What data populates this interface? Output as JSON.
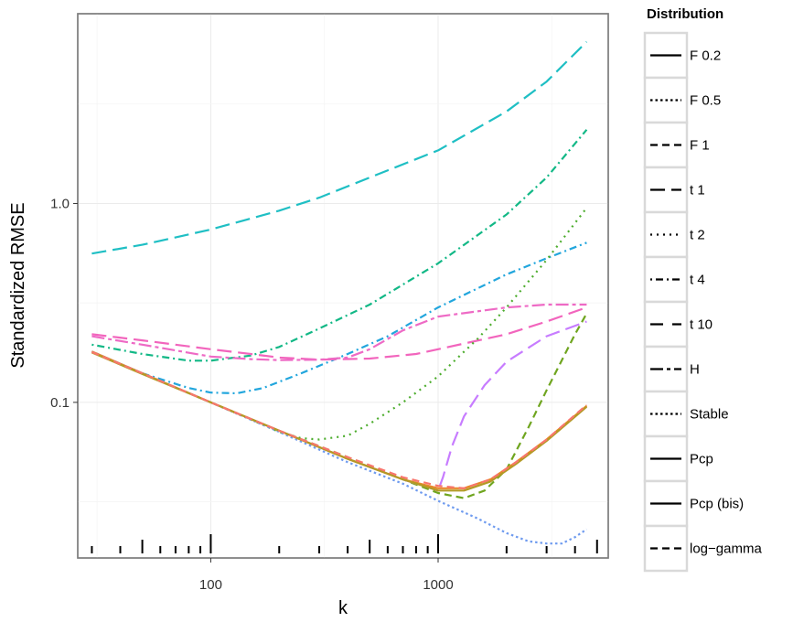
{
  "chart_data": {
    "type": "line",
    "xlabel": "k",
    "ylabel": "Standardized RMSE",
    "x_scale": "log10",
    "y_scale": "log10",
    "xlim": [
      26,
      5600
    ],
    "ylim": [
      0.0165,
      9.0
    ],
    "x_ticks": [
      100,
      1000
    ],
    "x_tick_labels": [
      "100",
      "1000"
    ],
    "y_ticks": [
      0.1,
      1.0
    ],
    "y_tick_labels": [
      "0.1",
      "1.0"
    ],
    "grid": true,
    "rug": true,
    "legend_position": "right",
    "legend_title": "Distribution",
    "legend_entries": [
      {
        "label": "F 0.2",
        "dash": "solid"
      },
      {
        "label": "F 0.5",
        "dash": "dotted-short"
      },
      {
        "label": "F 1",
        "dash": "dashed"
      },
      {
        "label": "t 1",
        "dash": "longdash"
      },
      {
        "label": "t 2",
        "dash": "dotted"
      },
      {
        "label": "t 4",
        "dash": "dotdash"
      },
      {
        "label": "t 10",
        "dash": "longdash-wide"
      },
      {
        "label": "H",
        "dash": "twodash"
      },
      {
        "label": "Stable",
        "dash": "dotted-short"
      },
      {
        "label": "Pcp",
        "dash": "solid"
      },
      {
        "label": "Pcp (bis)",
        "dash": "solid"
      },
      {
        "label": "log−gamma",
        "dash": "dashed"
      }
    ],
    "series": [
      {
        "color": "#1FBFC4",
        "dash": "longdash",
        "x": [
          30,
          50,
          100,
          200,
          300,
          500,
          1000,
          2000,
          3000,
          4500
        ],
        "y": [
          0.56,
          0.62,
          0.74,
          0.92,
          1.07,
          1.35,
          1.85,
          2.9,
          4.1,
          6.5
        ]
      },
      {
        "color": "#12B886",
        "dash": "dotdash",
        "x": [
          30,
          50,
          80,
          100,
          150,
          200,
          300,
          500,
          1000,
          2000,
          3000,
          4500
        ],
        "y": [
          0.195,
          0.175,
          0.162,
          0.162,
          0.172,
          0.19,
          0.235,
          0.31,
          0.5,
          0.88,
          1.35,
          2.35
        ]
      },
      {
        "color": "#22A6DD",
        "dash": "dotdash",
        "x": [
          30,
          50,
          80,
          100,
          130,
          170,
          250,
          400,
          600,
          1000,
          2000,
          3000,
          4500
        ],
        "y": [
          0.18,
          0.14,
          0.118,
          0.112,
          0.111,
          0.118,
          0.14,
          0.175,
          0.215,
          0.3,
          0.44,
          0.53,
          0.635
        ]
      },
      {
        "color": "#F265BD",
        "dash": "longdash",
        "x": [
          30,
          50,
          100,
          150,
          200,
          300,
          500,
          800,
          1000,
          2000,
          3000,
          4500
        ],
        "y": [
          0.22,
          0.205,
          0.185,
          0.175,
          0.168,
          0.164,
          0.166,
          0.175,
          0.185,
          0.22,
          0.255,
          0.3
        ]
      },
      {
        "color": "#EE6AC5",
        "dash": "twodash",
        "x": [
          30,
          50,
          100,
          150,
          200,
          300,
          400,
          500,
          700,
          1000,
          2000,
          3000,
          4500
        ],
        "y": [
          0.215,
          0.195,
          0.17,
          0.165,
          0.163,
          0.164,
          0.168,
          0.185,
          0.23,
          0.27,
          0.3,
          0.31,
          0.31
        ]
      },
      {
        "color": "#4DAD2E",
        "dash": "dotted",
        "x": [
          30,
          50,
          100,
          150,
          200,
          250,
          300,
          400,
          500,
          700,
          1000,
          1500,
          2000,
          3000,
          4500
        ],
        "y": [
          0.18,
          0.14,
          0.1,
          0.082,
          0.071,
          0.066,
          0.065,
          0.068,
          0.078,
          0.1,
          0.135,
          0.21,
          0.3,
          0.52,
          0.95
        ]
      },
      {
        "color": "#6FA51F",
        "dash": "dashed",
        "x": [
          30,
          50,
          100,
          200,
          400,
          700,
          1000,
          1300,
          1600,
          2000,
          2500,
          3000,
          4000,
          4500
        ],
        "y": [
          0.18,
          0.14,
          0.1,
          0.072,
          0.053,
          0.041,
          0.035,
          0.033,
          0.036,
          0.046,
          0.075,
          0.115,
          0.22,
          0.28
        ]
      },
      {
        "color": "#C77CFF",
        "dash": "longdash",
        "x": [
          30,
          50,
          100,
          200,
          400,
          700,
          1000,
          1050,
          1150,
          1300,
          1600,
          2000,
          3000,
          4500
        ],
        "y": [
          0.18,
          0.14,
          0.1,
          0.072,
          0.052,
          0.041,
          0.036,
          0.042,
          0.06,
          0.085,
          0.122,
          0.16,
          0.215,
          0.255
        ]
      },
      {
        "color": "#6F9BEF",
        "dash": "dotted-short",
        "x": [
          30,
          50,
          100,
          200,
          400,
          700,
          1000,
          1500,
          2000,
          2500,
          3000,
          3500,
          4000,
          4500
        ],
        "y": [
          0.18,
          0.14,
          0.1,
          0.071,
          0.05,
          0.039,
          0.032,
          0.026,
          0.022,
          0.02,
          0.0195,
          0.0195,
          0.021,
          0.023
        ]
      },
      {
        "color": "#E8872A",
        "dash": "solid",
        "x": [
          30,
          50,
          100,
          200,
          400,
          700,
          1000,
          1300,
          1700,
          2200,
          3000,
          4500
        ],
        "y": [
          0.18,
          0.14,
          0.1,
          0.072,
          0.052,
          0.041,
          0.037,
          0.037,
          0.041,
          0.05,
          0.065,
          0.096
        ]
      },
      {
        "color": "#B39A25",
        "dash": "solid",
        "x": [
          30,
          50,
          100,
          200,
          400,
          700,
          1000,
          1300,
          1700,
          2200,
          3000,
          4500
        ],
        "y": [
          0.178,
          0.139,
          0.1,
          0.072,
          0.052,
          0.041,
          0.036,
          0.036,
          0.04,
          0.049,
          0.064,
          0.095
        ]
      },
      {
        "color": "#F8766D",
        "dash": "dashed",
        "x": [
          30,
          50,
          100,
          200,
          400,
          700,
          1000,
          1300,
          1700,
          2200,
          3000,
          4500
        ],
        "y": [
          0.179,
          0.14,
          0.1,
          0.072,
          0.053,
          0.042,
          0.038,
          0.037,
          0.041,
          0.05,
          0.065,
          0.097
        ]
      }
    ],
    "rug_x": [
      30,
      40,
      50,
      60,
      70,
      80,
      90,
      100,
      200,
      300,
      400,
      500,
      600,
      700,
      800,
      900,
      1000,
      2000,
      3000,
      4000,
      5000
    ],
    "rug_major": [
      50,
      100,
      500,
      1000,
      5000
    ]
  }
}
